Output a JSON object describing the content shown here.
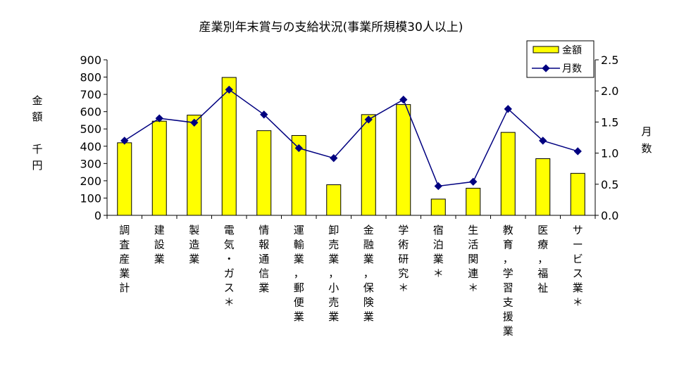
{
  "chart_data": {
    "type": "bar",
    "title": "産業別年末賞与の支給状況(事業所規模30人以上)",
    "ylabel_left": "金額 千円",
    "ylabel_left_lines": [
      "金",
      "額",
      "",
      "千",
      "円"
    ],
    "ylabel_right": "月数",
    "ylabel_right_lines": [
      "月",
      "数"
    ],
    "ylim_left": [
      0,
      900
    ],
    "yticks_left": [
      0,
      100,
      200,
      300,
      400,
      500,
      600,
      700,
      800,
      900
    ],
    "ylim_right": [
      0,
      2.5
    ],
    "yticks_right": [
      "0.0",
      "0.5",
      "1.0",
      "1.5",
      "2.0",
      "2.5"
    ],
    "legend_position": "top-right",
    "grid": false,
    "categories": [
      "調査産業計",
      "建設業",
      "製造業",
      "電気・ガス＊",
      "情報通信業",
      "運輸業，郵便業",
      "卸売業，小売業",
      "金融業，保険業",
      "学術研究＊",
      "宿泊業＊",
      "生活関連＊",
      "教育，学習支援業",
      "医療，福祉",
      "サービス業＊"
    ],
    "series": [
      {
        "name": "金額",
        "kind": "bar",
        "axis": "left",
        "color": "#ffff00",
        "values": [
          420,
          545,
          580,
          798,
          490,
          462,
          177,
          583,
          641,
          94,
          157,
          480,
          328,
          243
        ]
      },
      {
        "name": "月数",
        "kind": "line",
        "axis": "right",
        "color": "#000080",
        "values": [
          1.2,
          1.56,
          1.49,
          2.02,
          1.62,
          1.08,
          0.92,
          1.54,
          1.86,
          0.47,
          0.54,
          1.71,
          1.2,
          1.03
        ]
      }
    ]
  }
}
